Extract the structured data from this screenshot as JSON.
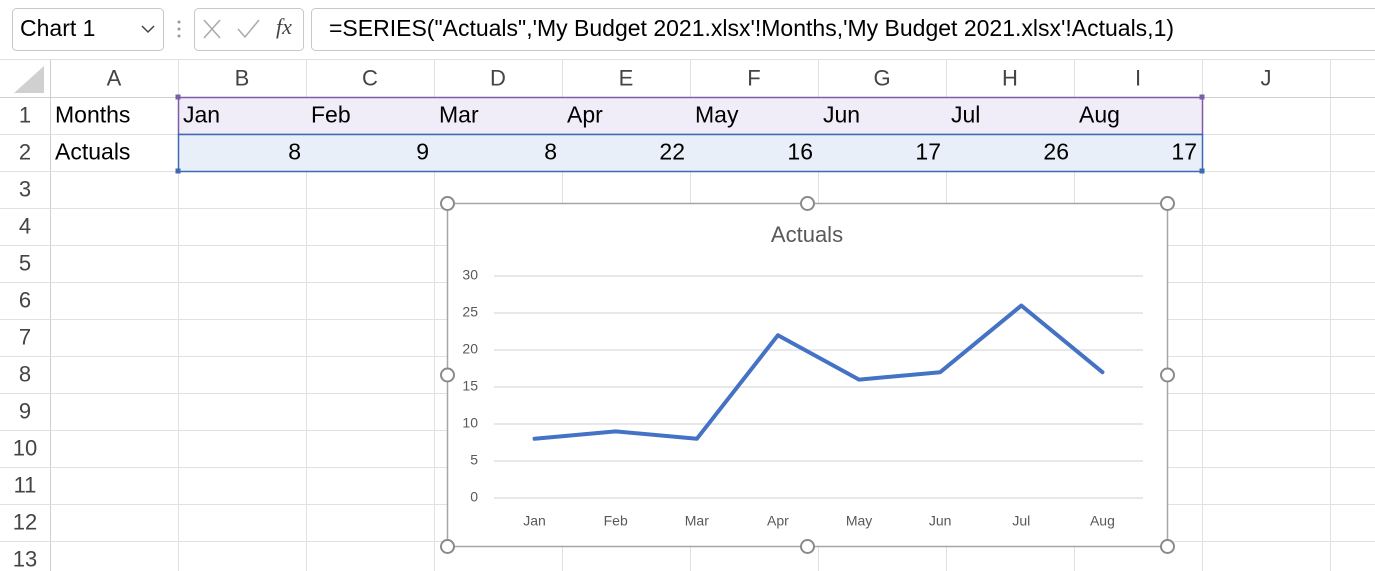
{
  "formula_bar": {
    "name_box": "Chart 1",
    "function_label": "fx",
    "formula": "=SERIES(\"Actuals\",'My Budget 2021.xlsx'!Months,'My Budget 2021.xlsx'!Actuals,1)"
  },
  "sheet": {
    "columns": [
      "A",
      "B",
      "C",
      "D",
      "E",
      "F",
      "G",
      "H",
      "I",
      "J"
    ],
    "row_numbers": [
      1,
      2,
      3,
      4,
      5,
      6,
      7,
      8,
      9,
      10,
      11,
      12,
      13
    ],
    "rows": [
      [
        "Months",
        "Jan",
        "Feb",
        "Mar",
        "Apr",
        "May",
        "Jun",
        "Jul",
        "Aug"
      ],
      [
        "Actuals",
        8,
        9,
        8,
        22,
        16,
        17,
        26,
        17
      ]
    ]
  },
  "chart_data": {
    "type": "line",
    "title": "Actuals",
    "categories": [
      "Jan",
      "Feb",
      "Mar",
      "Apr",
      "May",
      "Jun",
      "Jul",
      "Aug"
    ],
    "values": [
      8,
      9,
      8,
      22,
      16,
      17,
      26,
      17
    ],
    "color": "#4472c4",
    "ylim": [
      0,
      30
    ],
    "yticks": [
      0,
      5,
      10,
      15,
      20,
      25,
      30
    ],
    "grid": true
  }
}
